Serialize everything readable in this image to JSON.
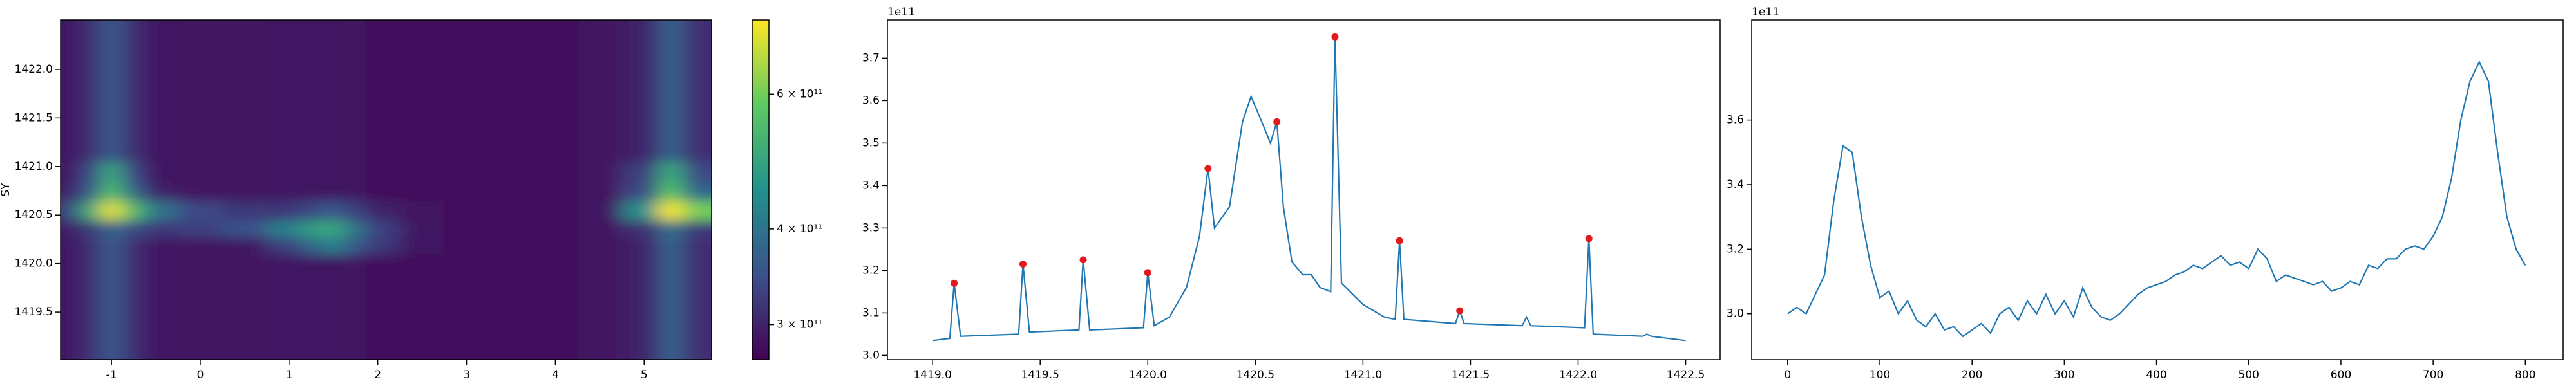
{
  "chart_data": [
    {
      "type": "heatmap",
      "ylabel": "SY",
      "colormap": "viridis",
      "x": [
        -1.5,
        -1.25,
        -1,
        -0.75,
        -0.5,
        0,
        0.5,
        1,
        1.25,
        1.5,
        1.75,
        2,
        2.5,
        3,
        4,
        4.5,
        5,
        5.3,
        5.6
      ],
      "y": [
        1419.2,
        1419.6,
        1420.0,
        1420.2,
        1420.35,
        1420.55,
        1420.75,
        1420.9,
        1421.2,
        1421.6,
        1422.0,
        1422.35
      ],
      "z": [
        [
          290000000000.0,
          310000000000.0,
          360000000000.0,
          310000000000.0,
          290000000000.0,
          285000000000.0,
          285000000000.0,
          290000000000.0,
          290000000000.0,
          290000000000.0,
          285000000000.0,
          280000000000.0,
          280000000000.0,
          280000000000.0,
          280000000000.0,
          285000000000.0,
          300000000000.0,
          370000000000.0,
          310000000000.0
        ],
        [
          290000000000.0,
          310000000000.0,
          360000000000.0,
          310000000000.0,
          290000000000.0,
          285000000000.0,
          285000000000.0,
          290000000000.0,
          290000000000.0,
          290000000000.0,
          285000000000.0,
          280000000000.0,
          280000000000.0,
          280000000000.0,
          280000000000.0,
          285000000000.0,
          300000000000.0,
          370000000000.0,
          310000000000.0
        ],
        [
          290000000000.0,
          310000000000.0,
          360000000000.0,
          310000000000.0,
          290000000000.0,
          285000000000.0,
          285000000000.0,
          290000000000.0,
          290000000000.0,
          290000000000.0,
          285000000000.0,
          280000000000.0,
          280000000000.0,
          280000000000.0,
          280000000000.0,
          285000000000.0,
          300000000000.0,
          370000000000.0,
          310000000000.0
        ],
        [
          290000000000.0,
          310000000000.0,
          360000000000.0,
          310000000000.0,
          290000000000.0,
          285000000000.0,
          290000000000.0,
          330000000000.0,
          380000000000.0,
          420000000000.0,
          360000000000.0,
          320000000000.0,
          290000000000.0,
          280000000000.0,
          280000000000.0,
          285000000000.0,
          300000000000.0,
          370000000000.0,
          310000000000.0
        ],
        [
          295000000000.0,
          320000000000.0,
          380000000000.0,
          340000000000.0,
          320000000000.0,
          330000000000.0,
          350000000000.0,
          420000000000.0,
          480000000000.0,
          500000000000.0,
          400000000000.0,
          330000000000.0,
          290000000000.0,
          280000000000.0,
          280000000000.0,
          285000000000.0,
          310000000000.0,
          390000000000.0,
          320000000000.0
        ],
        [
          330000000000.0,
          500000000000.0,
          720000000000.0,
          550000000000.0,
          400000000000.0,
          340000000000.0,
          320000000000.0,
          320000000000.0,
          340000000000.0,
          360000000000.0,
          330000000000.0,
          300000000000.0,
          285000000000.0,
          280000000000.0,
          280000000000.0,
          290000000000.0,
          450000000000.0,
          740000000000.0,
          600000000000.0
        ],
        [
          295000000000.0,
          360000000000.0,
          550000000000.0,
          380000000000.0,
          300000000000.0,
          285000000000.0,
          285000000000.0,
          290000000000.0,
          290000000000.0,
          290000000000.0,
          285000000000.0,
          280000000000.0,
          280000000000.0,
          280000000000.0,
          280000000000.0,
          285000000000.0,
          340000000000.0,
          560000000000.0,
          380000000000.0
        ],
        [
          290000000000.0,
          340000000000.0,
          500000000000.0,
          340000000000.0,
          290000000000.0,
          285000000000.0,
          285000000000.0,
          290000000000.0,
          290000000000.0,
          290000000000.0,
          285000000000.0,
          280000000000.0,
          280000000000.0,
          280000000000.0,
          280000000000.0,
          285000000000.0,
          330000000000.0,
          500000000000.0,
          340000000000.0
        ],
        [
          290000000000.0,
          310000000000.0,
          360000000000.0,
          310000000000.0,
          290000000000.0,
          285000000000.0,
          285000000000.0,
          290000000000.0,
          290000000000.0,
          290000000000.0,
          285000000000.0,
          280000000000.0,
          280000000000.0,
          280000000000.0,
          280000000000.0,
          285000000000.0,
          300000000000.0,
          370000000000.0,
          310000000000.0
        ],
        [
          290000000000.0,
          310000000000.0,
          360000000000.0,
          310000000000.0,
          290000000000.0,
          285000000000.0,
          285000000000.0,
          290000000000.0,
          290000000000.0,
          290000000000.0,
          285000000000.0,
          280000000000.0,
          280000000000.0,
          280000000000.0,
          280000000000.0,
          285000000000.0,
          300000000000.0,
          370000000000.0,
          310000000000.0
        ],
        [
          290000000000.0,
          310000000000.0,
          360000000000.0,
          310000000000.0,
          290000000000.0,
          285000000000.0,
          285000000000.0,
          290000000000.0,
          290000000000.0,
          290000000000.0,
          285000000000.0,
          280000000000.0,
          280000000000.0,
          280000000000.0,
          280000000000.0,
          285000000000.0,
          300000000000.0,
          370000000000.0,
          310000000000.0
        ],
        [
          290000000000.0,
          310000000000.0,
          360000000000.0,
          310000000000.0,
          290000000000.0,
          285000000000.0,
          285000000000.0,
          290000000000.0,
          290000000000.0,
          290000000000.0,
          285000000000.0,
          280000000000.0,
          280000000000.0,
          280000000000.0,
          280000000000.0,
          285000000000.0,
          300000000000.0,
          370000000000.0,
          310000000000.0
        ]
      ],
      "xlim": [
        -1.574,
        5.76
      ],
      "ylim": [
        1419.01,
        1422.51
      ],
      "xticks": [
        -1,
        0,
        1,
        2,
        3,
        4,
        5
      ],
      "yticks": [
        1419.5,
        {
          "value": 1420,
          "label": "1420.0"
        },
        1420.5,
        {
          "value": 1421,
          "label": "1421.0"
        },
        1421.5,
        {
          "value": 1422,
          "label": "1422.0"
        }
      ],
      "colorbar": {
        "scale": "log",
        "lim": [
          270000000000.0,
          750000000000.0
        ],
        "ticks": [
          {
            "value": 300000000000.0,
            "label": "3 × 10¹¹"
          },
          {
            "value": 400000000000.0,
            "label": "4 × 10¹¹"
          },
          {
            "value": 600000000000.0,
            "label": "6 × 10¹¹"
          }
        ]
      }
    },
    {
      "type": "line",
      "offset_text": "1e11",
      "x": [
        1419.0,
        1419.08,
        1419.1,
        1419.13,
        1419.4,
        1419.42,
        1419.45,
        1419.68,
        1419.7,
        1419.73,
        1419.98,
        1420.0,
        1420.03,
        1420.1,
        1420.18,
        1420.24,
        1420.28,
        1420.31,
        1420.38,
        1420.44,
        1420.48,
        1420.53,
        1420.57,
        1420.6,
        1420.63,
        1420.67,
        1420.72,
        1420.76,
        1420.8,
        1420.85,
        1420.87,
        1420.9,
        1421.0,
        1421.1,
        1421.15,
        1421.17,
        1421.19,
        1421.43,
        1421.45,
        1421.47,
        1421.74,
        1421.76,
        1421.78,
        1422.03,
        1422.05,
        1422.07,
        1422.3,
        1422.32,
        1422.34,
        1422.5
      ],
      "series": [
        {
          "color": "#1f77b4",
          "values": [
            3.035,
            3.04,
            3.17,
            3.045,
            3.05,
            3.215,
            3.055,
            3.06,
            3.225,
            3.06,
            3.065,
            3.195,
            3.07,
            3.09,
            3.16,
            3.28,
            3.44,
            3.3,
            3.35,
            3.55,
            3.61,
            3.55,
            3.5,
            3.55,
            3.35,
            3.22,
            3.19,
            3.19,
            3.16,
            3.15,
            3.75,
            3.17,
            3.12,
            3.09,
            3.085,
            3.27,
            3.085,
            3.075,
            3.105,
            3.075,
            3.07,
            3.09,
            3.07,
            3.065,
            3.275,
            3.05,
            3.045,
            3.05,
            3.045,
            3.035
          ]
        }
      ],
      "markers": {
        "color": "#e31a1c",
        "x": [
          1419.1,
          1419.42,
          1419.7,
          1420.0,
          1420.28,
          1420.6,
          1420.87,
          1421.17,
          1421.45,
          1422.05
        ],
        "values": [
          3.17,
          3.215,
          3.225,
          3.195,
          3.44,
          3.55,
          3.75,
          3.27,
          3.105,
          3.275
        ]
      },
      "xlim": [
        1418.79,
        1422.66
      ],
      "ylim": [
        2.99,
        3.79
      ],
      "xticks": [
        {
          "value": 1419,
          "label": "1419.0"
        },
        1419.5,
        {
          "value": 1420,
          "label": "1420.0"
        },
        1420.5,
        {
          "value": 1421,
          "label": "1421.0"
        },
        1421.5,
        {
          "value": 1422,
          "label": "1422.0"
        },
        1422.5
      ],
      "yticks": [
        {
          "value": 3,
          "label": "3.0"
        },
        3.1,
        3.2,
        3.3,
        3.4,
        3.5,
        3.6,
        3.7
      ]
    },
    {
      "type": "line",
      "offset_text": "1e11",
      "x": [
        0,
        10,
        20,
        30,
        40,
        50,
        60,
        70,
        80,
        90,
        100,
        110,
        120,
        130,
        140,
        150,
        160,
        170,
        180,
        190,
        200,
        210,
        220,
        230,
        240,
        250,
        260,
        270,
        280,
        290,
        300,
        310,
        320,
        330,
        340,
        350,
        360,
        370,
        380,
        390,
        400,
        410,
        420,
        430,
        440,
        450,
        460,
        470,
        480,
        490,
        500,
        510,
        520,
        530,
        540,
        550,
        560,
        570,
        580,
        590,
        600,
        610,
        620,
        630,
        640,
        650,
        660,
        670,
        680,
        690,
        700,
        710,
        720,
        730,
        740,
        750,
        760,
        770,
        780,
        790,
        800
      ],
      "series": [
        {
          "color": "#1f77b4",
          "values": [
            3.0,
            3.02,
            3.0,
            3.06,
            3.12,
            3.35,
            3.52,
            3.5,
            3.3,
            3.15,
            3.05,
            3.07,
            3.0,
            3.04,
            2.98,
            2.96,
            3.0,
            2.95,
            2.96,
            2.93,
            2.95,
            2.97,
            2.94,
            3.0,
            3.02,
            2.98,
            3.04,
            3.0,
            3.06,
            3.0,
            3.04,
            2.99,
            3.08,
            3.02,
            2.99,
            2.98,
            3.0,
            3.03,
            3.06,
            3.08,
            3.09,
            3.1,
            3.12,
            3.13,
            3.15,
            3.14,
            3.16,
            3.18,
            3.15,
            3.16,
            3.14,
            3.2,
            3.17,
            3.1,
            3.12,
            3.11,
            3.1,
            3.09,
            3.1,
            3.07,
            3.08,
            3.1,
            3.09,
            3.15,
            3.14,
            3.17,
            3.17,
            3.2,
            3.21,
            3.2,
            3.24,
            3.3,
            3.42,
            3.6,
            3.72,
            3.78,
            3.72,
            3.5,
            3.3,
            3.2,
            3.15
          ]
        }
      ],
      "xlim": [
        -39,
        841
      ],
      "ylim": [
        2.858,
        3.91
      ],
      "xticks": [
        0,
        100,
        200,
        300,
        400,
        500,
        600,
        700,
        800
      ],
      "yticks": [
        {
          "value": 3,
          "label": "3.0"
        },
        3.2,
        3.4,
        3.6
      ]
    }
  ]
}
